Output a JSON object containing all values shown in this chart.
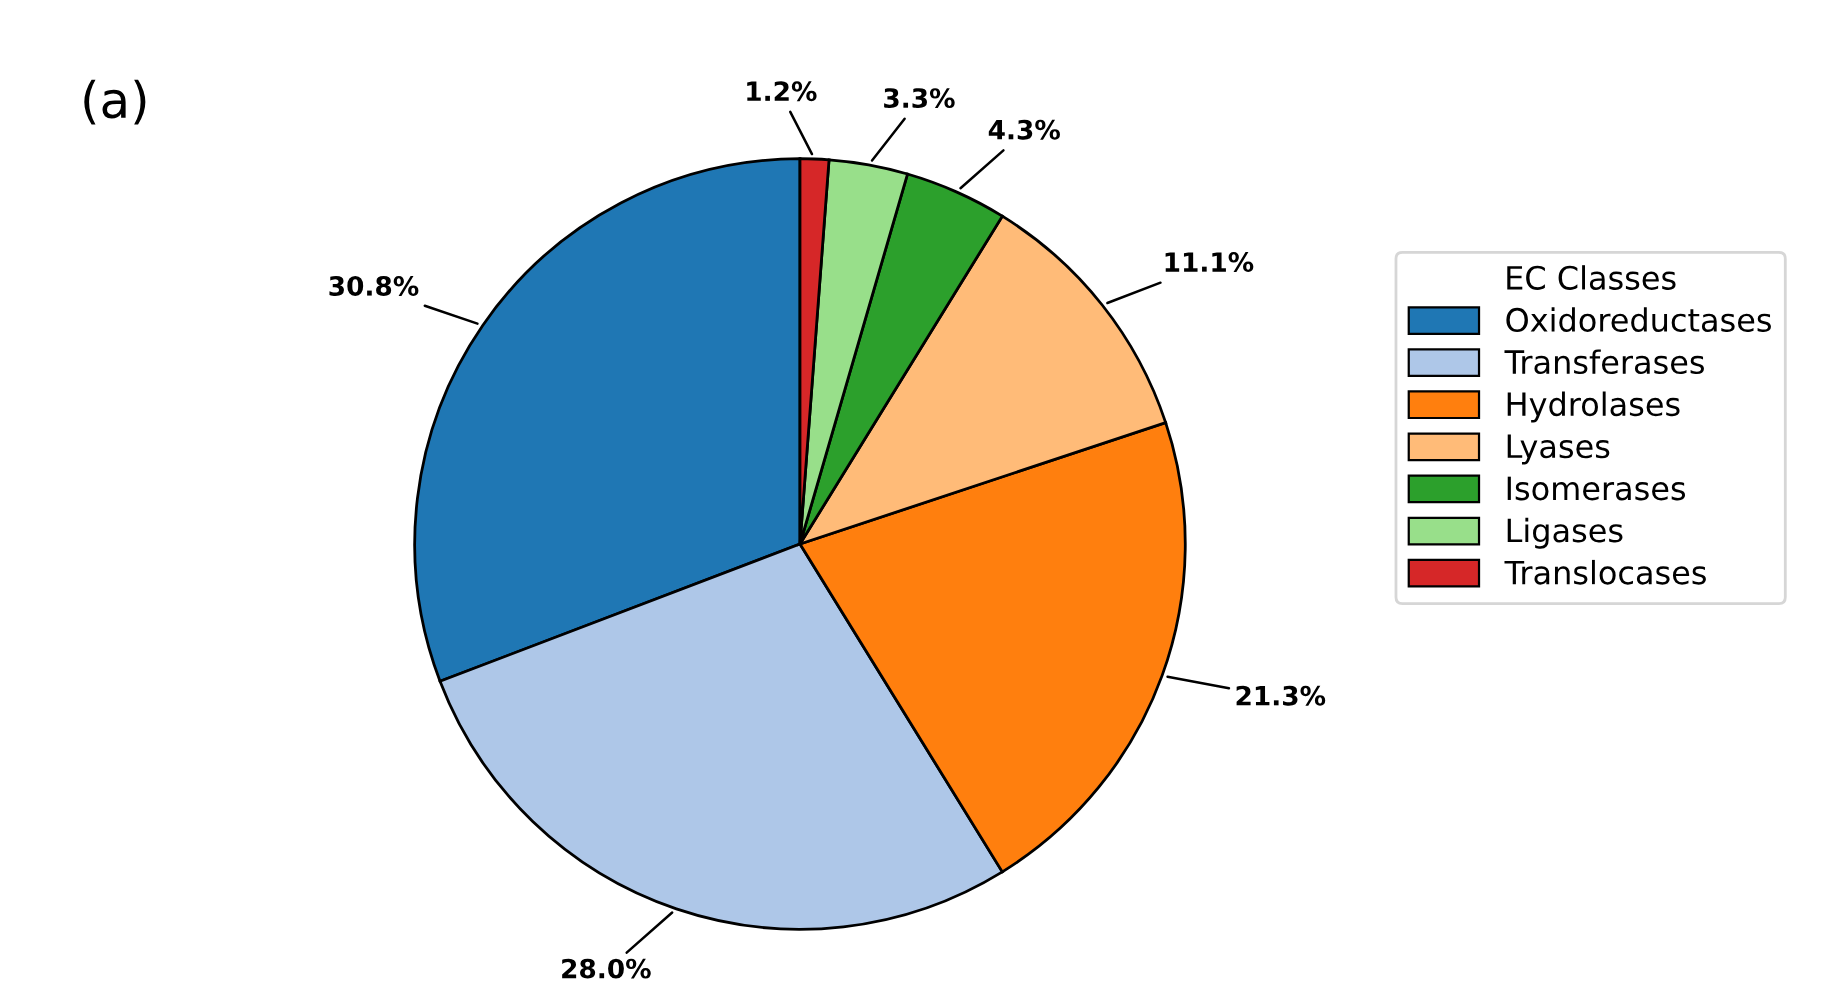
{
  "chart_data": {
    "type": "pie",
    "title": "(a)",
    "legend_title": "EC Classes",
    "legend": "right",
    "categories": [
      "Oxidoreductases",
      "Transferases",
      "Hydrolases",
      "Lyases",
      "Isomerases",
      "Ligases",
      "Translocases"
    ],
    "values": [
      30.8,
      28.0,
      21.3,
      11.1,
      4.3,
      3.3,
      1.2
    ],
    "colors": [
      "#1f77b4",
      "#aec7e8",
      "#ff7f0e",
      "#ffbb78",
      "#2ca02c",
      "#98df8a",
      "#d62728"
    ],
    "value_labels": [
      "30.8%",
      "28.0%",
      "21.3%",
      "11.1%",
      "4.3%",
      "3.3%",
      "1.2%"
    ]
  }
}
